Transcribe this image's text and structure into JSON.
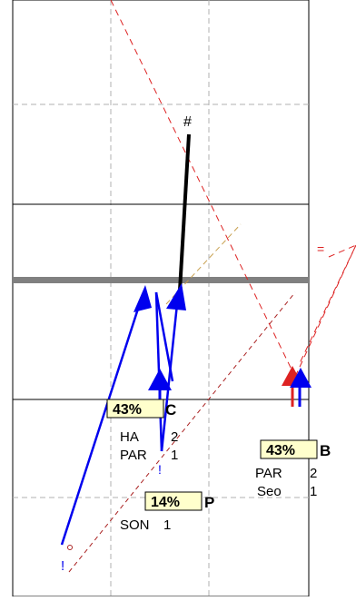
{
  "marker_hash": "#",
  "marker_equals": "=",
  "marker_bang_left": "!",
  "marker_bang_mid": "!",
  "nodes": {
    "C": {
      "pct": "43%",
      "letter": "C",
      "rows": [
        {
          "label": "HA",
          "value": "2"
        },
        {
          "label": "PAR",
          "value": "1"
        }
      ]
    },
    "B": {
      "pct": "43%",
      "letter": "B",
      "rows": [
        {
          "label": "PAR",
          "value": "2"
        },
        {
          "label": "Seo",
          "value": "1"
        }
      ]
    },
    "P": {
      "pct": "14%",
      "letter": "P",
      "rows": [
        {
          "label": "SON",
          "value": "1"
        }
      ]
    }
  },
  "colors": {
    "blue": "#0000ee",
    "red": "#dd2222",
    "dark_red": "#aa2222",
    "black": "#000000",
    "gray_bar": "#808080",
    "grid_dashed": "#b0b0b0",
    "grid_solid": "#000000",
    "label_bg": "#ffffcc",
    "tan_dash": "#c8a050"
  }
}
